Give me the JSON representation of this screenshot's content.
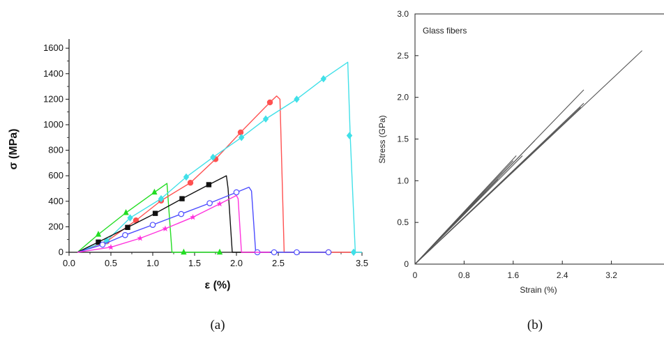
{
  "panels": [
    {
      "label": "(a)"
    },
    {
      "label": "(b)"
    }
  ],
  "chart_data": [
    {
      "type": "line",
      "panel": "(a)",
      "title": "",
      "xlabel": "ε (%)",
      "ylabel": "σ (MPa)",
      "xlim": [
        0.0,
        3.5
      ],
      "ylim": [
        0,
        1650
      ],
      "xticks": [
        "0.0",
        "0.5",
        "1.0",
        "1.5",
        "2.0",
        "2.5",
        "3.5"
      ],
      "yticks": [
        "0",
        "200",
        "400",
        "600",
        "800",
        "1000",
        "1200",
        "1400",
        "1600"
      ],
      "grid": false,
      "series": [
        {
          "color": "#22dd22",
          "marker": "triangle",
          "x": [
            0.1,
            0.35,
            0.68,
            1.02,
            1.17,
            1.23,
            1.35,
            1.8
          ],
          "y": [
            0,
            140,
            310,
            470,
            540,
            0,
            0,
            0
          ],
          "markers_x": [
            0.35,
            0.68,
            1.02,
            1.37,
            1.8
          ],
          "markers_y": [
            140,
            310,
            470,
            0,
            0
          ]
        },
        {
          "color": "#ff5050",
          "marker": "circle-filled",
          "x": [
            0.1,
            0.45,
            0.8,
            1.1,
            1.45,
            1.75,
            2.05,
            2.4,
            2.48,
            2.52,
            2.57,
            3.4
          ],
          "y": [
            0,
            85,
            250,
            405,
            545,
            730,
            940,
            1175,
            1225,
            1200,
            0,
            0
          ],
          "markers_x": [
            0.45,
            0.8,
            1.1,
            1.45,
            1.75,
            2.05,
            2.4,
            3.1
          ],
          "markers_y": [
            85,
            250,
            405,
            545,
            730,
            940,
            1175,
            0
          ]
        },
        {
          "color": "#40e0e8",
          "marker": "diamond",
          "x": [
            0.1,
            0.45,
            0.73,
            1.1,
            1.4,
            1.72,
            2.06,
            2.35,
            2.72,
            3.04,
            3.33,
            3.36,
            3.42,
            3.5
          ],
          "y": [
            0,
            90,
            270,
            420,
            590,
            745,
            900,
            1045,
            1200,
            1360,
            1490,
            900,
            0,
            0
          ],
          "markers_x": [
            0.45,
            0.73,
            1.1,
            1.4,
            1.72,
            2.06,
            2.35,
            2.72,
            3.04,
            3.35,
            3.4
          ],
          "markers_y": [
            90,
            270,
            420,
            590,
            745,
            900,
            1045,
            1200,
            1360,
            915,
            0
          ]
        },
        {
          "color": "#111111",
          "marker": "square",
          "x": [
            0.1,
            0.35,
            0.7,
            1.03,
            1.35,
            1.67,
            1.88,
            1.9,
            1.95,
            2.05,
            2.5
          ],
          "y": [
            0,
            80,
            195,
            305,
            420,
            530,
            600,
            500,
            0,
            0,
            0
          ],
          "markers_x": [
            0.35,
            0.7,
            1.03,
            1.35,
            1.67
          ],
          "markers_y": [
            80,
            195,
            305,
            420,
            530
          ]
        },
        {
          "color": "#4c4cff",
          "marker": "circle-open",
          "x": [
            0.1,
            0.4,
            0.67,
            1.0,
            1.34,
            1.68,
            2.0,
            2.15,
            2.18,
            2.23,
            2.45,
            2.72,
            3.1
          ],
          "y": [
            0,
            60,
            135,
            215,
            300,
            385,
            470,
            510,
            480,
            0,
            0,
            0,
            0
          ],
          "markers_x": [
            0.4,
            0.67,
            1.0,
            1.34,
            1.68,
            2.0,
            2.25,
            2.45,
            2.72,
            3.1
          ],
          "markers_y": [
            60,
            135,
            215,
            300,
            385,
            470,
            0,
            0,
            0,
            0
          ]
        },
        {
          "color": "#ff33dd",
          "marker": "star",
          "x": [
            0.1,
            0.5,
            0.85,
            1.15,
            1.48,
            1.8,
            2.0,
            2.02,
            2.06,
            2.4
          ],
          "y": [
            0,
            40,
            110,
            185,
            275,
            380,
            445,
            420,
            0,
            0
          ],
          "markers_x": [
            0.5,
            0.85,
            1.15,
            1.48,
            1.8
          ],
          "markers_y": [
            40,
            110,
            185,
            275,
            380
          ]
        }
      ]
    },
    {
      "type": "line",
      "panel": "(b)",
      "title": "",
      "annotation": "Glass fibers",
      "xlabel": "Strain (%)",
      "ylabel": "Stress (GPa)",
      "xlim": [
        0,
        4.0
      ],
      "ylim": [
        0,
        3.0
      ],
      "xticks": [
        "0",
        "0.8",
        "1.6",
        "2.4",
        "3.2"
      ],
      "yticks": [
        "0",
        "0.5",
        "1.0",
        "1.5",
        "2.0",
        "2.5",
        "3.0"
      ],
      "grid": false,
      "series": [
        {
          "color": "#555555",
          "x": [
            0,
            3.7
          ],
          "y": [
            0,
            2.56
          ]
        },
        {
          "color": "#555555",
          "x": [
            0,
            2.75
          ],
          "y": [
            0,
            2.09
          ]
        },
        {
          "color": "#555555",
          "x": [
            0,
            2.75
          ],
          "y": [
            0,
            1.93
          ]
        },
        {
          "color": "#555555",
          "x": [
            0,
            2.7
          ],
          "y": [
            0,
            1.88
          ]
        },
        {
          "color": "#555555",
          "x": [
            0,
            1.65
          ],
          "y": [
            0,
            1.3
          ]
        },
        {
          "color": "#555555",
          "x": [
            0,
            1.6
          ],
          "y": [
            0,
            1.24
          ]
        },
        {
          "color": "#555555",
          "x": [
            0,
            1.42
          ],
          "y": [
            0,
            1.1
          ]
        },
        {
          "color": "#555555",
          "x": [
            0,
            1.35
          ],
          "y": [
            0,
            1.02
          ]
        },
        {
          "color": "#555555",
          "x": [
            0,
            1.95
          ],
          "y": [
            0,
            1.48
          ]
        },
        {
          "color": "#555555",
          "x": [
            0,
            1.75
          ],
          "y": [
            0,
            1.3
          ]
        }
      ]
    }
  ]
}
